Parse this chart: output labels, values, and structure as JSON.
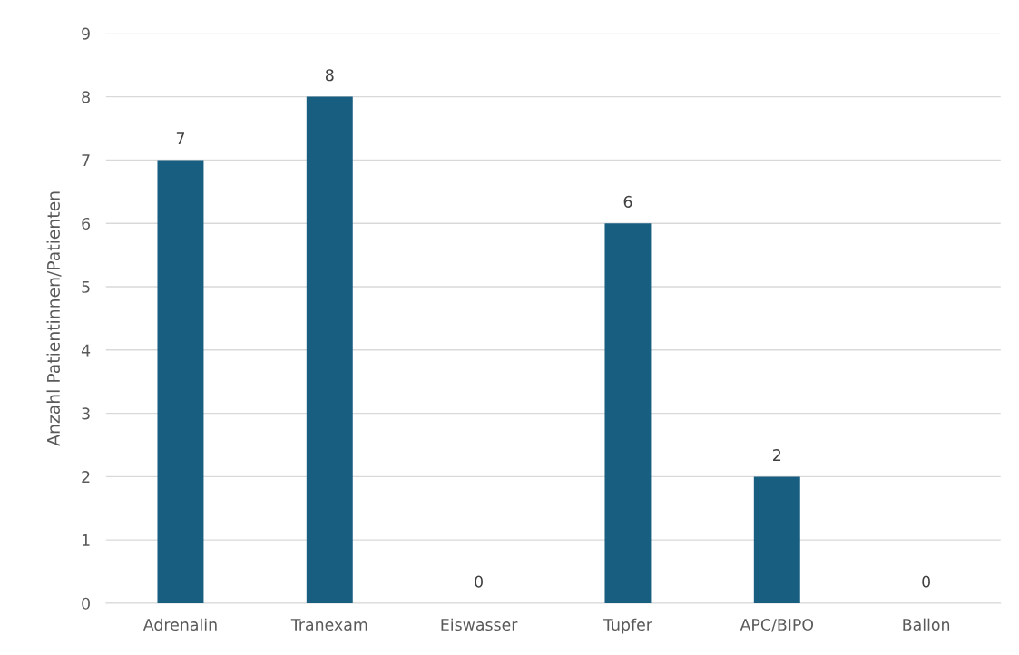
{
  "chart_data": {
    "type": "bar",
    "ylabel": "Anzahl Patientinnen/Patienten",
    "categories": [
      "Adrenalin",
      "Tranexam",
      "Eiswasser",
      "Tupfer",
      "APC/BIPO",
      "Ballon"
    ],
    "values": [
      7,
      8,
      0,
      6,
      2,
      0
    ],
    "color": "#175e80",
    "ylim": [
      0,
      9
    ],
    "yticks": [
      0,
      1,
      2,
      3,
      4,
      5,
      6,
      7,
      8,
      9
    ],
    "grid": "y",
    "data_labels": true,
    "legend": false
  }
}
